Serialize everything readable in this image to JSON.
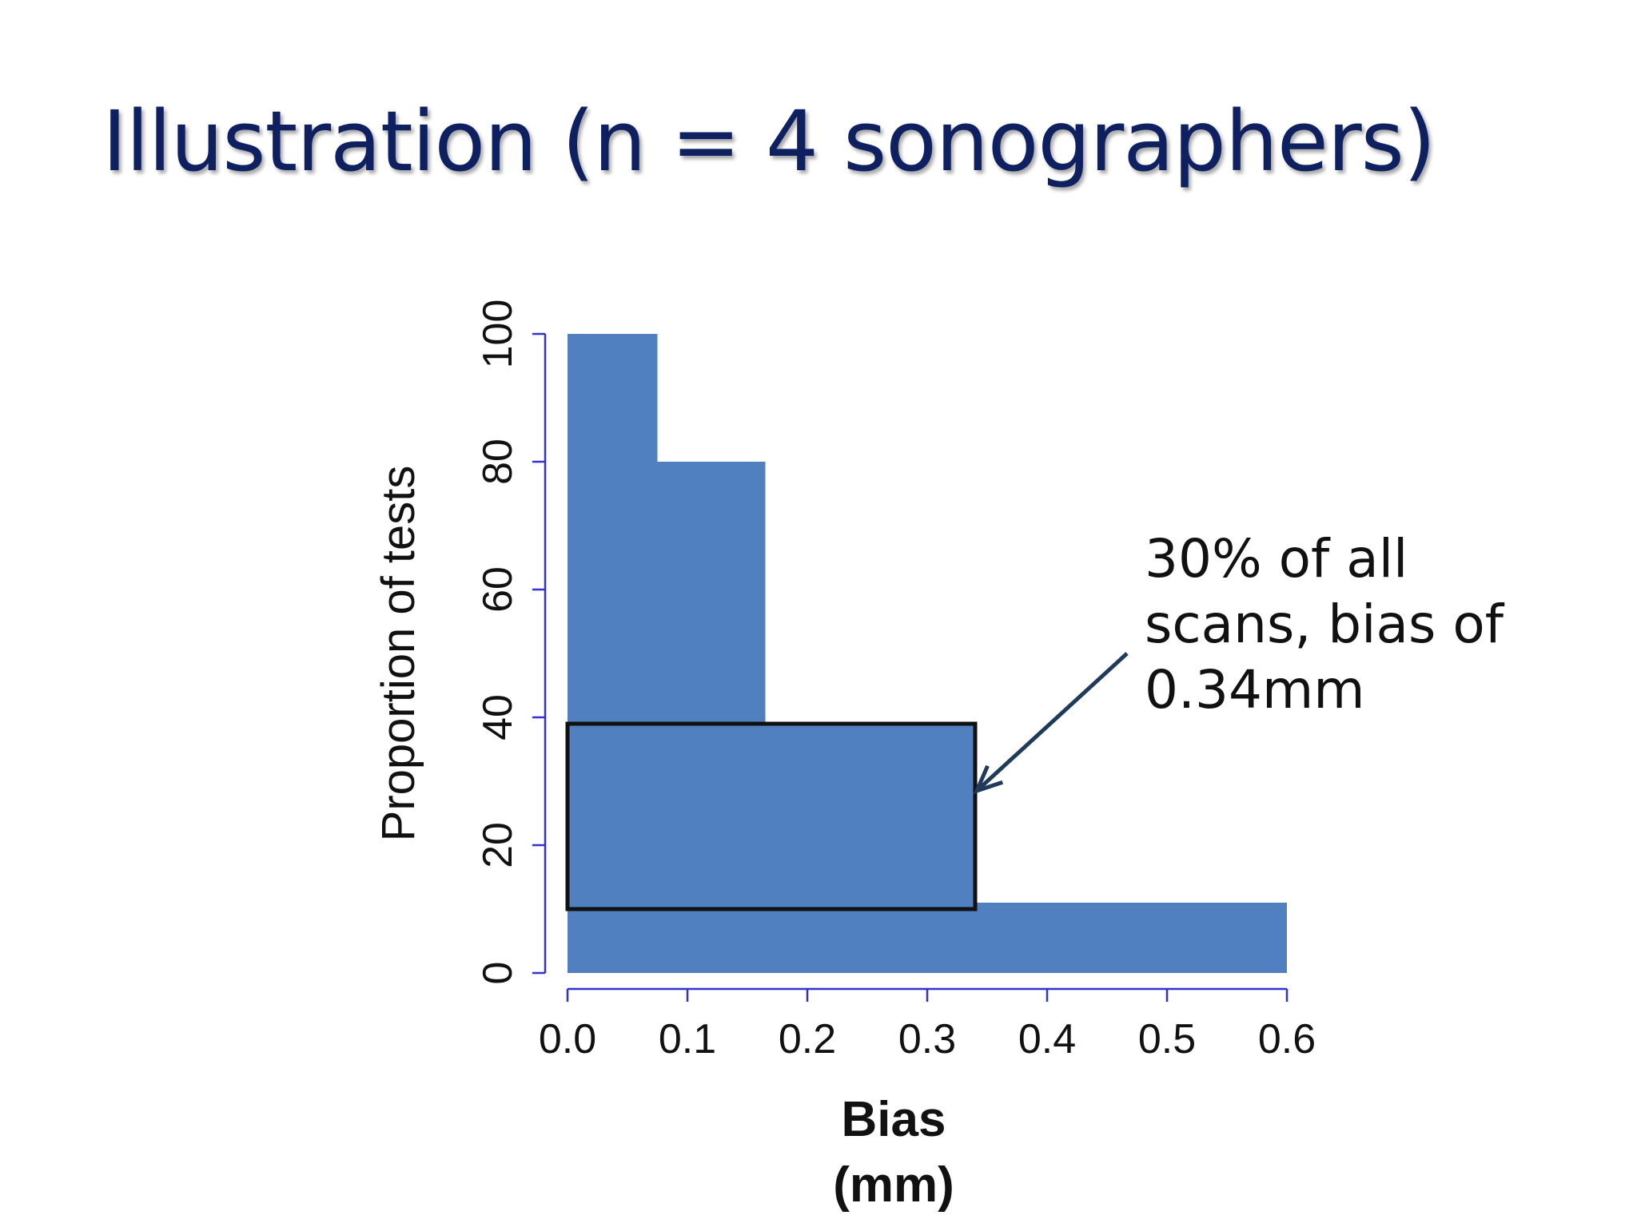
{
  "slide": {
    "title": "Illustration (n = 4 sonographers)"
  },
  "chart_data": {
    "type": "bar",
    "bars": [
      {
        "x0": 0.0,
        "x1": 0.075,
        "y0": 0,
        "y1": 100
      },
      {
        "x0": 0.0,
        "x1": 0.165,
        "y0": 0,
        "y1": 80
      },
      {
        "x0": 0.0,
        "x1": 0.34,
        "y0": 0,
        "y1": 39
      },
      {
        "x0": 0.0,
        "x1": 0.6,
        "y0": 0,
        "y1": 11
      }
    ],
    "highlight": {
      "x0": 0.0,
      "x1": 0.34,
      "y0": 10,
      "y1": 39
    },
    "xlabel": "Bias\n(mm)",
    "ylabel": "Proportion of tests",
    "xlim": [
      0.0,
      0.6
    ],
    "ylim": [
      0,
      100
    ],
    "xticks": [
      "0.0",
      "0.1",
      "0.2",
      "0.3",
      "0.4",
      "0.5",
      "0.6"
    ],
    "yticks": [
      "0",
      "20",
      "40",
      "60",
      "80",
      "100"
    ],
    "annotation": {
      "lines": [
        "30% of all",
        "scans, bias of",
        "0.34mm"
      ]
    },
    "grid": false,
    "colors": {
      "bar": "#5080c0",
      "axis": "#3333cc",
      "highlight_border": "#111111",
      "arrow": "#1f3a5a"
    }
  }
}
